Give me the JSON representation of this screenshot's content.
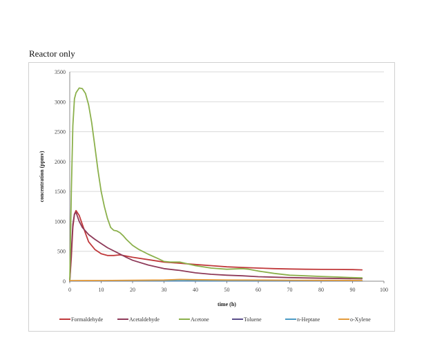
{
  "chart_data": {
    "type": "line",
    "title": "Reactor only",
    "xlabel": "time (h)",
    "ylabel": "concentration (ppmv)",
    "xlim": [
      0,
      100
    ],
    "ylim": [
      0,
      3500
    ],
    "xticks": [
      0,
      10,
      20,
      30,
      40,
      50,
      60,
      70,
      80,
      90,
      100
    ],
    "yticks": [
      0,
      500,
      1000,
      1500,
      2000,
      2500,
      3000,
      3500
    ],
    "grid": "horizontal",
    "legend": "bottom",
    "series": [
      {
        "name": "Formaldehyde",
        "color": "#c0393b",
        "x": [
          0,
          0.5,
          1,
          1.5,
          2,
          3,
          4,
          5,
          6,
          8,
          10,
          12,
          14,
          16,
          18,
          20,
          25,
          30,
          35,
          40,
          45,
          50,
          55,
          60,
          65,
          70,
          75,
          80,
          85,
          90,
          93
        ],
        "y": [
          0,
          400,
          900,
          1120,
          1180,
          1100,
          950,
          800,
          660,
          530,
          460,
          430,
          430,
          440,
          420,
          400,
          360,
          320,
          300,
          280,
          260,
          240,
          230,
          220,
          210,
          205,
          200,
          198,
          196,
          194,
          190
        ]
      },
      {
        "name": "Acetaldehyde",
        "color": "#8e3a59",
        "x": [
          0,
          0.5,
          1,
          1.5,
          2,
          3,
          4,
          6,
          8,
          10,
          12,
          15,
          18,
          20,
          25,
          30,
          35,
          40,
          45,
          50,
          55,
          60,
          70,
          80,
          93
        ],
        "y": [
          0,
          500,
          950,
          1120,
          1150,
          1000,
          900,
          780,
          700,
          630,
          560,
          480,
          400,
          350,
          270,
          210,
          180,
          140,
          115,
          100,
          90,
          75,
          60,
          50,
          40
        ]
      },
      {
        "name": "Acetone",
        "color": "#8bb04b",
        "x": [
          0,
          0.5,
          1,
          1.5,
          2,
          3,
          4,
          5,
          6,
          7,
          8,
          9,
          10,
          11,
          12,
          13,
          14,
          15,
          16,
          17,
          18,
          20,
          22,
          25,
          28,
          30,
          32,
          35,
          40,
          45,
          50,
          55,
          57,
          60,
          65,
          70,
          75,
          80,
          85,
          90,
          93
        ],
        "y": [
          0,
          1500,
          2600,
          3050,
          3150,
          3230,
          3220,
          3140,
          2950,
          2650,
          2250,
          1850,
          1500,
          1250,
          1050,
          900,
          850,
          840,
          810,
          760,
          700,
          600,
          530,
          450,
          380,
          330,
          320,
          320,
          260,
          220,
          200,
          210,
          200,
          170,
          130,
          100,
          90,
          80,
          70,
          60,
          55
        ]
      },
      {
        "name": "Toluene",
        "color": "#5a4d8a",
        "x": [
          0,
          93
        ],
        "y": [
          5,
          5
        ]
      },
      {
        "name": "n-Heptane",
        "color": "#4b9ac5",
        "x": [
          0,
          93
        ],
        "y": [
          8,
          8
        ]
      },
      {
        "name": "o-Xylene",
        "color": "#e39a3b",
        "x": [
          0,
          10,
          20,
          30,
          35,
          40,
          50,
          60,
          70,
          80,
          93
        ],
        "y": [
          10,
          12,
          15,
          20,
          30,
          25,
          20,
          18,
          16,
          14,
          12
        ]
      }
    ]
  }
}
